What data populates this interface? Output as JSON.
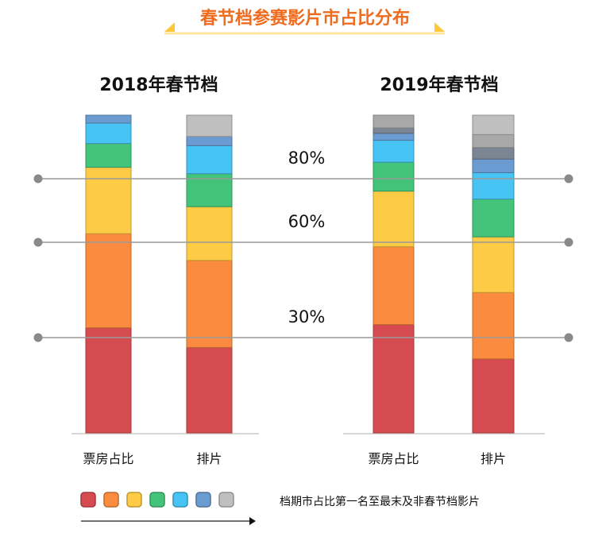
{
  "chart_data": {
    "type": "bar",
    "stacked": true,
    "title": "春节档参赛影片市占比分布",
    "unit": "%",
    "ylim": [
      0,
      100
    ],
    "reference_lines": [
      {
        "value": 80,
        "label": "80%"
      },
      {
        "value": 60,
        "label": "60%"
      },
      {
        "value": 30,
        "label": "30%"
      }
    ],
    "groups": [
      {
        "title": "2018年春节档",
        "bars": [
          {
            "category": "票房占比",
            "values": [
              33.1,
              29.6,
              20.9,
              7.5,
              6.4,
              2.5
            ]
          },
          {
            "category": "排片",
            "values": [
              26.9,
              27.4,
              16.9,
              10.4,
              8.8,
              2.9,
              6.7
            ]
          }
        ]
      },
      {
        "title": "2019年春节档",
        "bars": [
          {
            "category": "票房占比",
            "values": [
              34.1,
              24.5,
              17.5,
              9.1,
              6.9,
              2.2,
              1.7,
              4.0
            ]
          },
          {
            "category": "排片",
            "values": [
              23.3,
              20.9,
              17.5,
              11.9,
              8.3,
              4.3,
              3.6,
              4.1,
              6.1
            ]
          }
        ]
      }
    ],
    "segment_colors_2018_box": [
      "#d64b4f",
      "#fb8c3f",
      "#fdcb45",
      "#43c47a",
      "#47c3f4",
      "#6a9bd1"
    ],
    "segment_colors_2018_screen": [
      "#d64b4f",
      "#fb8c3f",
      "#fdcb45",
      "#43c47a",
      "#47c3f4",
      "#6a9bd1",
      "#bfbfbf"
    ],
    "segment_colors_2019_box": [
      "#d64b4f",
      "#fb8c3f",
      "#fdcb45",
      "#43c47a",
      "#47c3f4",
      "#6a9bd1",
      "#7c8594",
      "#a8a8a8"
    ],
    "segment_colors_2019_screen": [
      "#d64b4f",
      "#fb8c3f",
      "#fdcb45",
      "#43c47a",
      "#47c3f4",
      "#6a9bd1",
      "#7c8594",
      "#a8a8a8",
      "#bfbfbf"
    ],
    "legend": {
      "colors": [
        "#d64b4f",
        "#fb8c3f",
        "#fdcb45",
        "#43c47a",
        "#47c3f4",
        "#6a9bd1",
        "#bfbfbf"
      ],
      "text": "档期市占比第一名至最末及非春节档影片",
      "arrow": "left-to-right"
    },
    "accent_color": "#ef6c1f",
    "underline_color": "#fcd14a"
  }
}
